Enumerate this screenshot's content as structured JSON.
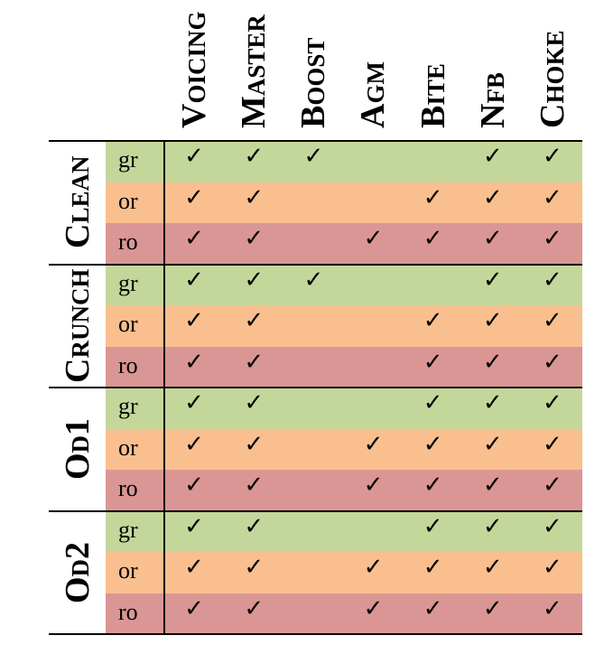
{
  "columns": [
    "Voicing",
    "Master",
    "Boost",
    "Agm",
    "Bite",
    "Nfb",
    "Choke"
  ],
  "check_symbol": "✓",
  "colors": {
    "gr": "#c4d79b",
    "or": "#fabf8f",
    "ro": "#da9694"
  },
  "groups": [
    {
      "name": "Clean",
      "rows": [
        {
          "label": "gr",
          "checks": [
            true,
            true,
            true,
            false,
            false,
            true,
            true
          ]
        },
        {
          "label": "or",
          "checks": [
            true,
            true,
            false,
            false,
            true,
            true,
            true
          ]
        },
        {
          "label": "ro",
          "checks": [
            true,
            true,
            false,
            true,
            true,
            true,
            true
          ]
        }
      ]
    },
    {
      "name": "Crunch",
      "rows": [
        {
          "label": "gr",
          "checks": [
            true,
            true,
            true,
            false,
            false,
            true,
            true
          ]
        },
        {
          "label": "or",
          "checks": [
            true,
            true,
            false,
            false,
            true,
            true,
            true
          ]
        },
        {
          "label": "ro",
          "checks": [
            true,
            true,
            false,
            false,
            true,
            true,
            true
          ]
        }
      ]
    },
    {
      "name": "Od1",
      "rows": [
        {
          "label": "gr",
          "checks": [
            true,
            true,
            false,
            false,
            true,
            true,
            true
          ]
        },
        {
          "label": "or",
          "checks": [
            true,
            true,
            false,
            true,
            true,
            true,
            true
          ]
        },
        {
          "label": "ro",
          "checks": [
            true,
            true,
            false,
            true,
            true,
            true,
            true
          ]
        }
      ]
    },
    {
      "name": "Od2",
      "rows": [
        {
          "label": "gr",
          "checks": [
            true,
            true,
            false,
            false,
            true,
            true,
            true
          ]
        },
        {
          "label": "or",
          "checks": [
            true,
            true,
            false,
            true,
            true,
            true,
            true
          ]
        },
        {
          "label": "ro",
          "checks": [
            true,
            true,
            false,
            true,
            true,
            true,
            true
          ]
        }
      ]
    }
  ]
}
